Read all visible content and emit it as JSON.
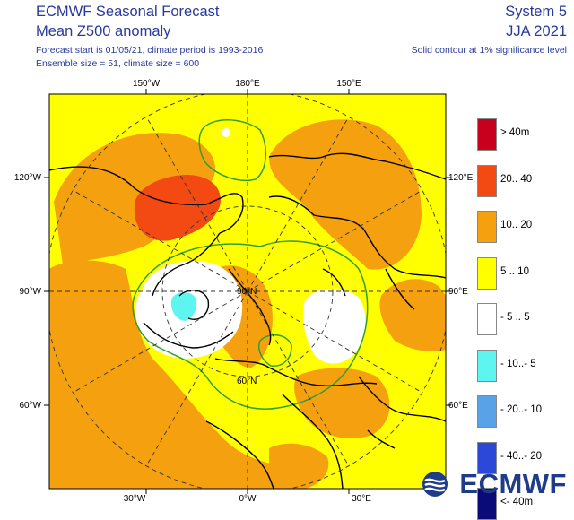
{
  "header": {
    "title": "ECMWF Seasonal Forecast",
    "subtitle": "Mean Z500 anomaly",
    "forecast_info": "Forecast start is 01/05/21, climate period is 1993-2016",
    "ensemble_info": "Ensemble size = 51, climate size = 600",
    "system": "System 5",
    "season": "JJA 2021",
    "contour_note": "Solid contour at 1% significance level"
  },
  "map": {
    "projection": "polar stereographic, North Pole centred",
    "outside_value_color": "#ffff00",
    "labels": {
      "top_150w": "150°W",
      "top_180": "180°E",
      "top_150e": "150°E",
      "left_120w": "120°W",
      "left_90w": "90°W",
      "left_60w": "60°W",
      "right_120e": "120°E",
      "right_90e": "90°E",
      "right_60e": "60°E",
      "bottom_30w": "30°W",
      "bottom_0": "0°W",
      "bottom_30e": "30°E",
      "center_90n": "90°N",
      "lat_60n": "60°N"
    }
  },
  "legend": [
    {
      "label": "> 40m",
      "color": "#c8001e"
    },
    {
      "label": "20.. 40",
      "color": "#f24a12"
    },
    {
      "label": "10.. 20",
      "color": "#f5a00f"
    },
    {
      "label": "5 .. 10",
      "color": "#ffff00"
    },
    {
      "label": "- 5 .. 5",
      "color": "#ffffff"
    },
    {
      "label": "- 10..- 5",
      "color": "#5ef5f0"
    },
    {
      "label": "- 20..- 10",
      "color": "#5aa2e8"
    },
    {
      "label": "- 40..- 20",
      "color": "#2c48d8"
    },
    {
      "label": "<- 40m",
      "color": "#0a0a78"
    }
  ],
  "logo": {
    "text": "ECMWF"
  }
}
